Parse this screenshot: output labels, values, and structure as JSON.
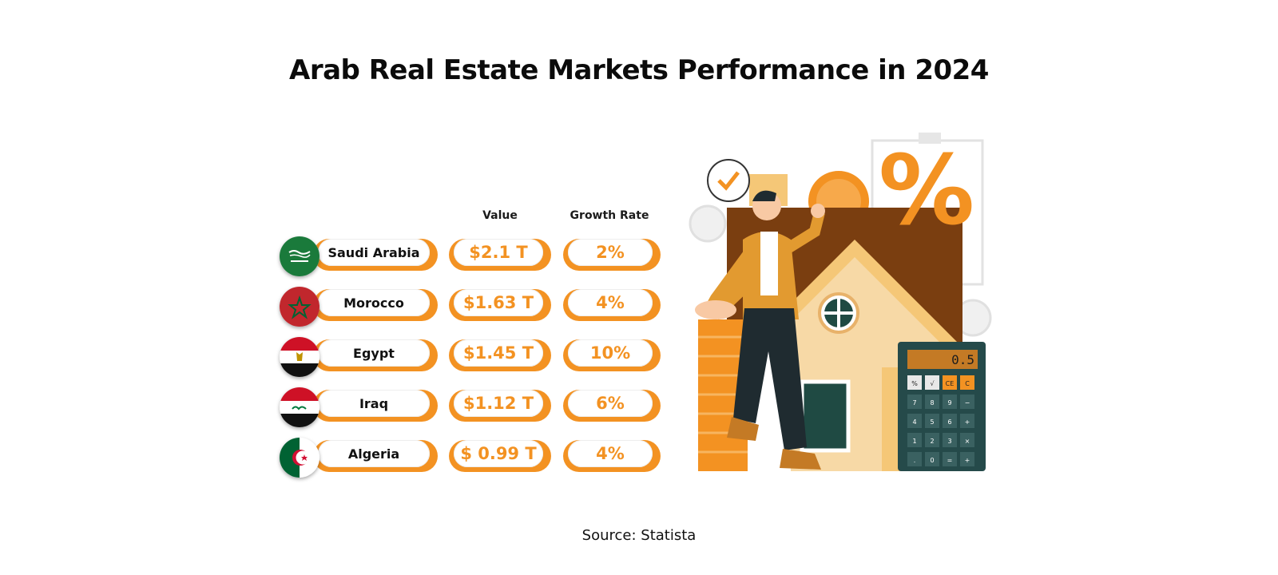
{
  "title": "Arab Real Estate Markets Performance in 2024",
  "source": "Source: Statista",
  "colors": {
    "accent": "#F39222",
    "text": "#111111"
  },
  "chart_data": {
    "type": "table",
    "title": "Arab Real Estate Markets Performance in 2024",
    "columns": [
      "Value",
      "Growth Rate"
    ],
    "rows": [
      {
        "country": "Saudi Arabia",
        "value": "$2.1 T",
        "growth": "2%",
        "flag": "saudi-arabia-flag"
      },
      {
        "country": "Morocco",
        "value": "$1.63 T",
        "growth": "4%",
        "flag": "morocco-flag"
      },
      {
        "country": "Egypt",
        "value": "$1.45 T",
        "growth": "10%",
        "flag": "egypt-flag"
      },
      {
        "country": "Iraq",
        "value": "$1.12 T",
        "growth": "6%",
        "flag": "iraq-flag"
      },
      {
        "country": "Algeria",
        "value": "$ 0.99 T",
        "growth": "4%",
        "flag": "algeria-flag"
      }
    ]
  },
  "illustration": {
    "calculator_display": "0.5",
    "percent_sign": "%",
    "calculator_keys": [
      "%",
      "√",
      "CE",
      "C",
      "7",
      "8",
      "9",
      "−",
      "4",
      "5",
      "6",
      "+",
      "1",
      "2",
      "3",
      "×",
      ".",
      "0",
      "=",
      "+"
    ]
  }
}
